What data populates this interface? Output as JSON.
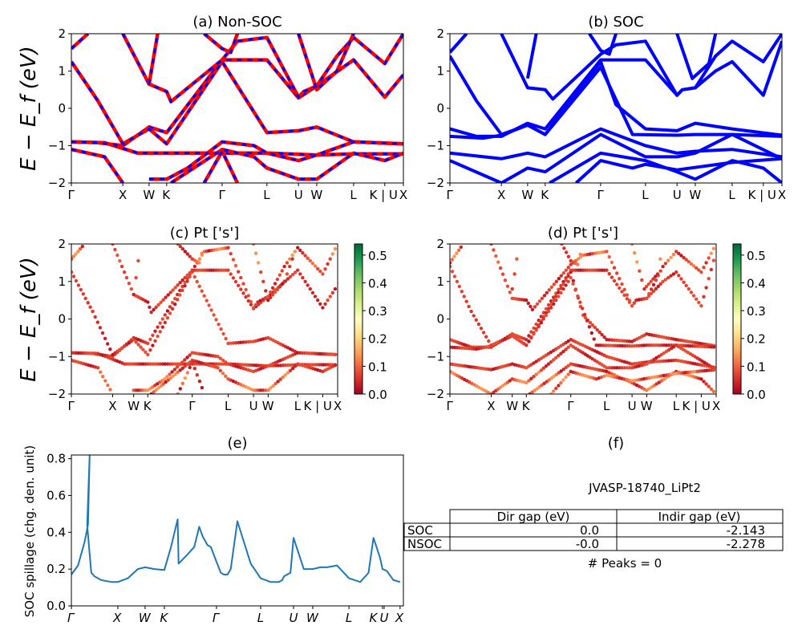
{
  "chart_data": [
    {
      "id": "a",
      "type": "line",
      "title": "(a) Non-SOC",
      "ylabel": "E − E_f (eV)",
      "ylim": [
        -2,
        2
      ],
      "yticks": [
        "2",
        "1",
        "0",
        "−1",
        "−2"
      ],
      "ytick_values": [
        2,
        1,
        0,
        -1,
        -2
      ],
      "kpath_labels": [
        "Γ",
        "X",
        "W",
        "K",
        "Γ",
        "L",
        "U",
        "W",
        "L",
        "K | U",
        "X"
      ],
      "kpath_positions": [
        0,
        0.155,
        0.234,
        0.287,
        0.454,
        0.589,
        0.684,
        0.739,
        0.85,
        0.944,
        1.0
      ],
      "series_style": "red-solid with blue-dash overlay",
      "colors": {
        "primary": "#ff0000",
        "overlay": "#0000ff"
      },
      "bands": [
        [
          [
            0,
            -0.9
          ],
          [
            0.1,
            -0.92
          ],
          [
            0.2,
            -1.2
          ],
          [
            0.287,
            -1.2
          ],
          [
            0.454,
            -1.2
          ],
          [
            0.589,
            -1.2
          ],
          [
            0.739,
            -1.25
          ],
          [
            0.85,
            -1.22
          ],
          [
            1.0,
            -1.22
          ]
        ],
        [
          [
            0,
            -0.9
          ],
          [
            0.08,
            -0.92
          ],
          [
            0.155,
            -1.0
          ],
          [
            0.234,
            -0.5
          ],
          [
            0.287,
            -0.65
          ],
          [
            0.454,
            1.3
          ],
          [
            0.589,
            1.3
          ],
          [
            0.684,
            0.28
          ],
          [
            0.739,
            0.6
          ],
          [
            0.85,
            1.3
          ],
          [
            0.944,
            0.3
          ],
          [
            1.0,
            0.9
          ]
        ],
        [
          [
            0,
            1.25
          ],
          [
            0.08,
            0.2
          ],
          [
            0.155,
            -0.95
          ],
          [
            0.234,
            -0.55
          ],
          [
            0.287,
            -0.95
          ],
          [
            0.454,
            1.25
          ],
          [
            0.589,
            -0.65
          ],
          [
            0.684,
            -0.6
          ],
          [
            0.739,
            -0.5
          ],
          [
            0.85,
            -0.9
          ],
          [
            1.0,
            -0.95
          ]
        ],
        [
          [
            0,
            1.6
          ],
          [
            0.05,
            2.0
          ]
        ],
        [
          [
            0.155,
            2.0
          ],
          [
            0.234,
            0.65
          ],
          [
            0.287,
            0.45
          ],
          [
            0.3,
            0.18
          ],
          [
            0.454,
            1.3
          ],
          [
            0.5,
            1.8
          ],
          [
            0.589,
            1.9
          ],
          [
            0.684,
            0.3
          ],
          [
            0.7,
            0.45
          ],
          [
            0.739,
            0.6
          ],
          [
            0.8,
            1.4
          ],
          [
            0.85,
            1.9
          ],
          [
            0.944,
            1.2
          ],
          [
            1.0,
            2.0
          ]
        ],
        [
          [
            0.234,
            0.65
          ],
          [
            0.26,
            2.0
          ]
        ],
        [
          [
            0.4,
            2.0
          ],
          [
            0.454,
            1.6
          ],
          [
            0.48,
            1.5
          ],
          [
            0.5,
            2.0
          ]
        ],
        [
          [
            0.684,
            2.0
          ],
          [
            0.739,
            0.5
          ],
          [
            0.8,
            1.0
          ],
          [
            0.85,
            2.0
          ]
        ],
        [
          [
            0,
            -1.1
          ],
          [
            0.1,
            -1.3
          ],
          [
            0.155,
            -2.0
          ]
        ],
        [
          [
            0.234,
            -1.9
          ],
          [
            0.287,
            -1.9
          ],
          [
            0.35,
            -1.6
          ],
          [
            0.454,
            -0.9
          ],
          [
            0.55,
            -1.0
          ],
          [
            0.589,
            -1.2
          ],
          [
            0.684,
            -1.4
          ],
          [
            0.739,
            -1.25
          ],
          [
            0.85,
            -0.9
          ],
          [
            1.0,
            -0.95
          ]
        ],
        [
          [
            0.3,
            -2.0
          ],
          [
            0.454,
            -1.1
          ],
          [
            0.55,
            -1.3
          ],
          [
            0.589,
            -1.6
          ],
          [
            0.684,
            -1.9
          ],
          [
            0.739,
            -1.9
          ],
          [
            0.85,
            -1.2
          ],
          [
            0.944,
            -1.4
          ],
          [
            1.0,
            -1.2
          ]
        ],
        [
          [
            0.4,
            -2.0
          ],
          [
            0.454,
            -1.15
          ],
          [
            0.5,
            -2.0
          ]
        ]
      ]
    },
    {
      "id": "b",
      "type": "line",
      "title": "(b) SOC",
      "ylim": [
        -2,
        2
      ],
      "yticks": [
        "2",
        "1",
        "0",
        "−1",
        "−2"
      ],
      "ytick_values": [
        2,
        1,
        0,
        -1,
        -2
      ],
      "kpath_labels": [
        "Γ",
        "X",
        "W",
        "K",
        "Γ",
        "L",
        "U",
        "W",
        "L",
        "K | U",
        "X"
      ],
      "kpath_positions": [
        0,
        0.155,
        0.234,
        0.287,
        0.454,
        0.589,
        0.684,
        0.739,
        0.85,
        0.944,
        1.0
      ],
      "colors": {
        "primary": "#0000ff"
      },
      "bands": [
        [
          [
            0,
            -0.55
          ],
          [
            0.08,
            -0.75
          ],
          [
            0.155,
            -0.75
          ],
          [
            0.234,
            -0.4
          ],
          [
            0.287,
            -0.55
          ],
          [
            0.454,
            1.3
          ],
          [
            0.589,
            1.3
          ],
          [
            0.684,
            0.35
          ],
          [
            0.7,
            0.5
          ],
          [
            0.739,
            0.55
          ],
          [
            0.8,
            1.0
          ],
          [
            0.85,
            1.25
          ],
          [
            0.944,
            0.35
          ],
          [
            1.0,
            1.8
          ]
        ],
        [
          [
            0,
            -0.75
          ],
          [
            0.1,
            -0.8
          ],
          [
            0.155,
            -0.72
          ],
          [
            0.234,
            -0.45
          ],
          [
            0.287,
            -0.7
          ],
          [
            0.454,
            1.25
          ],
          [
            0.5,
            0.1
          ],
          [
            0.589,
            -0.55
          ],
          [
            0.684,
            -0.6
          ],
          [
            0.739,
            -0.4
          ],
          [
            0.85,
            -0.55
          ],
          [
            1.0,
            -0.72
          ]
        ],
        [
          [
            0,
            1.4
          ],
          [
            0.08,
            0.2
          ],
          [
            0.155,
            -0.7
          ],
          [
            0.234,
            -0.45
          ],
          [
            0.287,
            -0.7
          ],
          [
            0.454,
            1.1
          ],
          [
            0.55,
            -0.7
          ],
          [
            0.684,
            -0.72
          ],
          [
            0.739,
            -0.7
          ],
          [
            0.85,
            -0.7
          ],
          [
            1.0,
            -0.75
          ]
        ],
        [
          [
            0,
            1.5
          ],
          [
            0.05,
            2.0
          ]
        ],
        [
          [
            0.155,
            2.0
          ],
          [
            0.234,
            0.55
          ],
          [
            0.287,
            0.5
          ],
          [
            0.31,
            0.25
          ],
          [
            0.454,
            1.45
          ],
          [
            0.5,
            1.7
          ],
          [
            0.589,
            1.8
          ],
          [
            0.684,
            0.35
          ],
          [
            0.7,
            0.5
          ],
          [
            0.739,
            0.55
          ],
          [
            0.8,
            1.4
          ],
          [
            0.85,
            1.8
          ],
          [
            0.944,
            1.25
          ],
          [
            1.0,
            2.0
          ]
        ],
        [
          [
            0.234,
            0.8
          ],
          [
            0.26,
            2.0
          ]
        ],
        [
          [
            0.42,
            2.0
          ],
          [
            0.454,
            1.55
          ],
          [
            0.48,
            1.45
          ],
          [
            0.5,
            2.0
          ]
        ],
        [
          [
            0.684,
            2.0
          ],
          [
            0.73,
            0.8
          ],
          [
            0.78,
            1.2
          ],
          [
            0.8,
            2.0
          ]
        ],
        [
          [
            0,
            -1.2
          ],
          [
            0.155,
            -1.35
          ],
          [
            0.234,
            -1.2
          ],
          [
            0.287,
            -1.3
          ],
          [
            0.454,
            -0.55
          ],
          [
            0.589,
            -1.0
          ],
          [
            0.684,
            -1.2
          ],
          [
            0.739,
            -1.15
          ],
          [
            0.85,
            -1.1
          ],
          [
            1.0,
            -1.3
          ]
        ],
        [
          [
            0,
            -1.4
          ],
          [
            0.155,
            -2.0
          ],
          [
            0.234,
            -1.6
          ],
          [
            0.287,
            -1.7
          ],
          [
            0.454,
            -0.7
          ],
          [
            0.589,
            -1.3
          ],
          [
            0.684,
            -1.3
          ],
          [
            0.739,
            -1.2
          ],
          [
            0.85,
            -0.7
          ],
          [
            1.0,
            -1.35
          ]
        ],
        [
          [
            0.3,
            -2.0
          ],
          [
            0.454,
            -1.2
          ],
          [
            0.589,
            -1.4
          ],
          [
            0.684,
            -1.7
          ],
          [
            0.739,
            -1.9
          ],
          [
            0.85,
            -1.4
          ],
          [
            0.944,
            -1.6
          ],
          [
            1.0,
            -2.0
          ]
        ],
        [
          [
            0.38,
            -2.0
          ],
          [
            0.454,
            -1.4
          ],
          [
            0.55,
            -1.6
          ],
          [
            0.589,
            -1.5
          ],
          [
            0.684,
            -1.65
          ],
          [
            0.85,
            -1.45
          ],
          [
            1.0,
            -1.35
          ]
        ]
      ]
    },
    {
      "id": "c",
      "type": "scatter",
      "title": "(c)  Pt ['s']",
      "ylabel": "E − E_f (eV)",
      "ylim": [
        -2,
        2
      ],
      "yticks": [
        "2",
        "1",
        "0",
        "−1",
        "−2"
      ],
      "ytick_values": [
        2,
        1,
        0,
        -1,
        -2
      ],
      "kpath_labels": [
        "Γ",
        "X",
        "W",
        "K",
        "Γ",
        "L",
        "U",
        "W",
        "L",
        "K | U",
        "X"
      ],
      "kpath_positions": [
        0,
        0.155,
        0.234,
        0.287,
        0.454,
        0.589,
        0.684,
        0.739,
        0.85,
        0.944,
        1.0
      ],
      "colorbar": {
        "label_ticks": [
          "0.0",
          "0.1",
          "0.2",
          "0.3",
          "0.4",
          "0.5"
        ],
        "tick_values": [
          0,
          0.1,
          0.2,
          0.3,
          0.4,
          0.5
        ],
        "range": [
          0,
          0.54
        ],
        "colormap": "RdYlGn"
      },
      "source_bands": "a"
    },
    {
      "id": "d",
      "type": "scatter",
      "title": "(d) Pt ['s']",
      "ylim": [
        -2,
        2
      ],
      "yticks": [
        "2",
        "1",
        "0",
        "−1",
        "−2"
      ],
      "ytick_values": [
        2,
        1,
        0,
        -1,
        -2
      ],
      "kpath_labels": [
        "Γ",
        "X",
        "W",
        "K",
        "Γ",
        "L",
        "U",
        "W",
        "L",
        "K | U",
        "X"
      ],
      "kpath_positions": [
        0,
        0.155,
        0.234,
        0.287,
        0.454,
        0.589,
        0.684,
        0.739,
        0.85,
        0.944,
        1.0
      ],
      "colorbar": {
        "label_ticks": [
          "0.0",
          "0.1",
          "0.2",
          "0.3",
          "0.4",
          "0.5"
        ],
        "tick_values": [
          0,
          0.1,
          0.2,
          0.3,
          0.4,
          0.5
        ],
        "range": [
          0,
          0.54
        ],
        "colormap": "RdYlGn"
      },
      "source_bands": "b"
    },
    {
      "id": "e",
      "type": "line",
      "title": "(e)",
      "ylabel": "SOC spillage (chg. den. unit)",
      "ylim": [
        0,
        0.82
      ],
      "yticks": [
        "0.0",
        "0.2",
        "0.4",
        "0.6",
        "0.8"
      ],
      "ytick_values": [
        0,
        0.2,
        0.4,
        0.6,
        0.8
      ],
      "kpath_labels": [
        "Γ",
        "X",
        "W",
        "K",
        "Γ",
        "L",
        "U",
        "W",
        "L",
        "K",
        "U",
        "X"
      ],
      "kpath_positions": [
        0,
        0.14,
        0.222,
        0.28,
        0.437,
        0.57,
        0.669,
        0.727,
        0.836,
        0.937,
        0.942,
        0.99
      ],
      "colors": {
        "line": "#1f77b4"
      },
      "x": [
        0,
        0.02,
        0.04,
        0.05,
        0.0475,
        0.06,
        0.07,
        0.09,
        0.12,
        0.14,
        0.17,
        0.2,
        0.222,
        0.25,
        0.28,
        0.3,
        0.32,
        0.323,
        0.35,
        0.37,
        0.385,
        0.395,
        0.41,
        0.42,
        0.437,
        0.45,
        0.46,
        0.47,
        0.48,
        0.5,
        0.54,
        0.57,
        0.6,
        0.625,
        0.635,
        0.64,
        0.66,
        0.669,
        0.7,
        0.727,
        0.75,
        0.77,
        0.8,
        0.836,
        0.87,
        0.89,
        0.895,
        0.91,
        0.93,
        0.937,
        0.95,
        0.97,
        0.99
      ],
      "y": [
        0.17,
        0.22,
        0.35,
        0.44,
        0.44,
        0.18,
        0.16,
        0.14,
        0.13,
        0.13,
        0.15,
        0.2,
        0.21,
        0.2,
        0.195,
        0.32,
        0.47,
        0.23,
        0.28,
        0.32,
        0.43,
        0.38,
        0.33,
        0.32,
        0.24,
        0.18,
        0.17,
        0.17,
        0.2,
        0.46,
        0.23,
        0.15,
        0.13,
        0.13,
        0.14,
        0.16,
        0.18,
        0.37,
        0.2,
        0.2,
        0.21,
        0.21,
        0.22,
        0.15,
        0.13,
        0.17,
        0.18,
        0.37,
        0.26,
        0.2,
        0.19,
        0.14,
        0.13
      ],
      "peak": {
        "x": 0.055,
        "y": 0.82
      }
    }
  ],
  "table_panel": {
    "title": "(f)",
    "material": "JVASP-18740_LiPt2",
    "columns": [
      "",
      "Dir gap (eV)",
      "Indir gap (eV)"
    ],
    "rows": [
      {
        "label": "SOC",
        "dir_gap": "0.0",
        "indir_gap": "-2.143"
      },
      {
        "label": "NSOC",
        "dir_gap": "-0.0",
        "indir_gap": "-2.278"
      }
    ],
    "footer": "# Peaks = 0"
  }
}
